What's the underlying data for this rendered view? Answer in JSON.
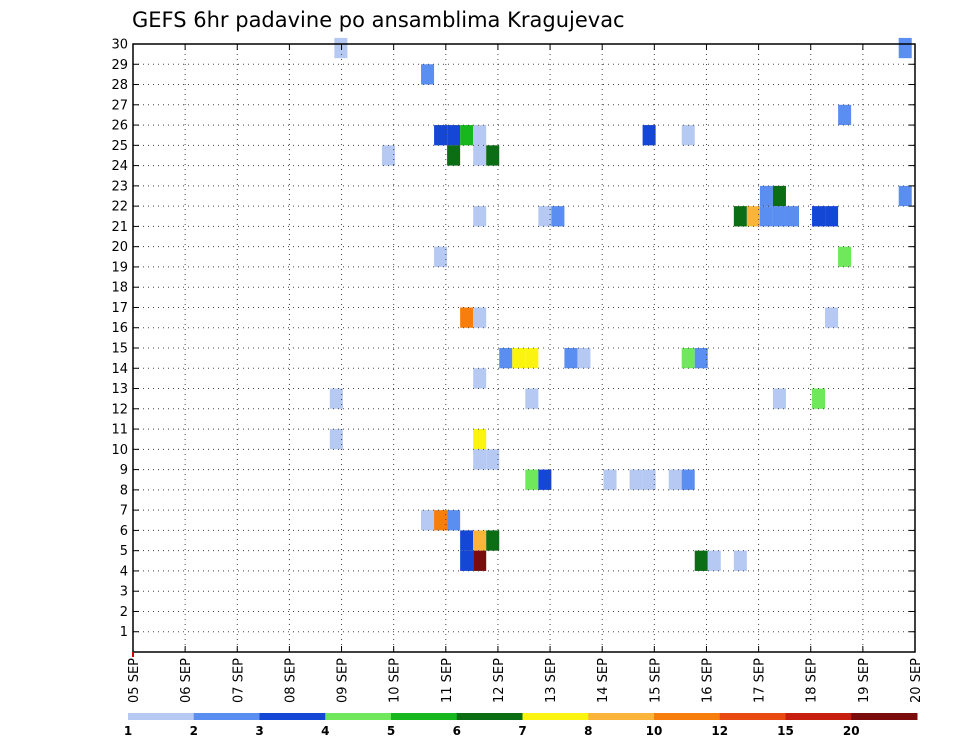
{
  "chart_data": {
    "type": "heatmap",
    "title": "GEFS 6hr padavine po ansamblima Kragujevac",
    "x_tick_labels": [
      "05 SEP",
      "06 SEP",
      "07 SEP",
      "08 SEP",
      "09 SEP",
      "10 SEP",
      "11 SEP",
      "12 SEP",
      "13 SEP",
      "14 SEP",
      "15 SEP",
      "16 SEP",
      "17 SEP",
      "18 SEP",
      "19 SEP",
      "20 SEP"
    ],
    "y_tick_labels": [
      "1",
      "2",
      "3",
      "4",
      "5",
      "6",
      "7",
      "8",
      "9",
      "10",
      "11",
      "12",
      "13",
      "14",
      "15",
      "16",
      "17",
      "18",
      "19",
      "20",
      "21",
      "22",
      "23",
      "24",
      "25",
      "26",
      "27",
      "28",
      "29",
      "30"
    ],
    "xlim": [
      0,
      60
    ],
    "ylim": [
      0,
      30
    ],
    "grid": true,
    "colorbar": {
      "labels": [
        "1",
        "2",
        "3",
        "4",
        "5",
        "6",
        "7",
        "8",
        "10",
        "12",
        "15",
        "20"
      ],
      "colors": [
        "#b5c9f3",
        "#5a8ef0",
        "#1447d6",
        "#6fe85b",
        "#16b81e",
        "#0b6d14",
        "#faf410",
        "#fbb43a",
        "#f77d0c",
        "#e84a12",
        "#c81e10",
        "#7a0c0c"
      ]
    },
    "cells": [
      {
        "x": 15.95,
        "y": 29.8,
        "v": 1
      },
      {
        "x": 59.25,
        "y": 29.8,
        "v": 2
      },
      {
        "x": 22.6,
        "y": 28.5,
        "v": 2
      },
      {
        "x": 54.6,
        "y": 26.5,
        "v": 2
      },
      {
        "x": 23.6,
        "y": 25.5,
        "v": 3
      },
      {
        "x": 24.6,
        "y": 25.5,
        "v": 3
      },
      {
        "x": 25.6,
        "y": 25.5,
        "v": 5
      },
      {
        "x": 26.6,
        "y": 25.5,
        "v": 1
      },
      {
        "x": 39.6,
        "y": 25.5,
        "v": 3
      },
      {
        "x": 42.6,
        "y": 25.5,
        "v": 1
      },
      {
        "x": 19.6,
        "y": 24.5,
        "v": 1
      },
      {
        "x": 24.6,
        "y": 24.5,
        "v": 6
      },
      {
        "x": 26.6,
        "y": 24.5,
        "v": 1
      },
      {
        "x": 27.6,
        "y": 24.5,
        "v": 6
      },
      {
        "x": 48.6,
        "y": 22.5,
        "v": 2
      },
      {
        "x": 49.6,
        "y": 22.5,
        "v": 6
      },
      {
        "x": 59.25,
        "y": 22.5,
        "v": 2
      },
      {
        "x": 26.6,
        "y": 21.5,
        "v": 1
      },
      {
        "x": 31.6,
        "y": 21.5,
        "v": 1
      },
      {
        "x": 32.6,
        "y": 21.5,
        "v": 2
      },
      {
        "x": 46.6,
        "y": 21.5,
        "v": 6
      },
      {
        "x": 47.6,
        "y": 21.5,
        "v": 8
      },
      {
        "x": 48.6,
        "y": 21.5,
        "v": 2
      },
      {
        "x": 49.6,
        "y": 21.5,
        "v": 2
      },
      {
        "x": 50.6,
        "y": 21.5,
        "v": 2
      },
      {
        "x": 52.6,
        "y": 21.5,
        "v": 3
      },
      {
        "x": 53.6,
        "y": 21.5,
        "v": 3
      },
      {
        "x": 23.6,
        "y": 19.5,
        "v": 1
      },
      {
        "x": 54.6,
        "y": 19.5,
        "v": 4
      },
      {
        "x": 25.6,
        "y": 16.5,
        "v": 10
      },
      {
        "x": 26.6,
        "y": 16.5,
        "v": 1
      },
      {
        "x": 53.6,
        "y": 16.5,
        "v": 1
      },
      {
        "x": 28.6,
        "y": 14.5,
        "v": 2
      },
      {
        "x": 29.6,
        "y": 14.5,
        "v": 7
      },
      {
        "x": 30.6,
        "y": 14.5,
        "v": 7
      },
      {
        "x": 33.6,
        "y": 14.5,
        "v": 2
      },
      {
        "x": 34.6,
        "y": 14.5,
        "v": 1
      },
      {
        "x": 42.6,
        "y": 14.5,
        "v": 4
      },
      {
        "x": 43.6,
        "y": 14.5,
        "v": 2
      },
      {
        "x": 26.6,
        "y": 13.5,
        "v": 1
      },
      {
        "x": 15.6,
        "y": 12.5,
        "v": 1
      },
      {
        "x": 30.6,
        "y": 12.5,
        "v": 1
      },
      {
        "x": 49.6,
        "y": 12.5,
        "v": 1
      },
      {
        "x": 52.6,
        "y": 12.5,
        "v": 4
      },
      {
        "x": 15.6,
        "y": 10.5,
        "v": 1
      },
      {
        "x": 26.6,
        "y": 10.5,
        "v": 7
      },
      {
        "x": 26.6,
        "y": 9.5,
        "v": 1
      },
      {
        "x": 27.6,
        "y": 9.5,
        "v": 1
      },
      {
        "x": 30.6,
        "y": 8.5,
        "v": 4
      },
      {
        "x": 31.6,
        "y": 8.5,
        "v": 3
      },
      {
        "x": 36.6,
        "y": 8.5,
        "v": 1
      },
      {
        "x": 38.6,
        "y": 8.5,
        "v": 1
      },
      {
        "x": 39.6,
        "y": 8.5,
        "v": 1
      },
      {
        "x": 41.6,
        "y": 8.5,
        "v": 1
      },
      {
        "x": 42.6,
        "y": 8.5,
        "v": 2
      },
      {
        "x": 22.6,
        "y": 6.5,
        "v": 1
      },
      {
        "x": 23.6,
        "y": 6.5,
        "v": 10
      },
      {
        "x": 24.6,
        "y": 6.5,
        "v": 2
      },
      {
        "x": 25.6,
        "y": 5.5,
        "v": 3
      },
      {
        "x": 26.6,
        "y": 5.5,
        "v": 8
      },
      {
        "x": 27.6,
        "y": 5.5,
        "v": 6
      },
      {
        "x": 25.6,
        "y": 4.5,
        "v": 3
      },
      {
        "x": 26.6,
        "y": 4.5,
        "v": 20
      },
      {
        "x": 43.6,
        "y": 4.5,
        "v": 6
      },
      {
        "x": 44.6,
        "y": 4.5,
        "v": 1
      },
      {
        "x": 46.6,
        "y": 4.5,
        "v": 1
      }
    ]
  }
}
